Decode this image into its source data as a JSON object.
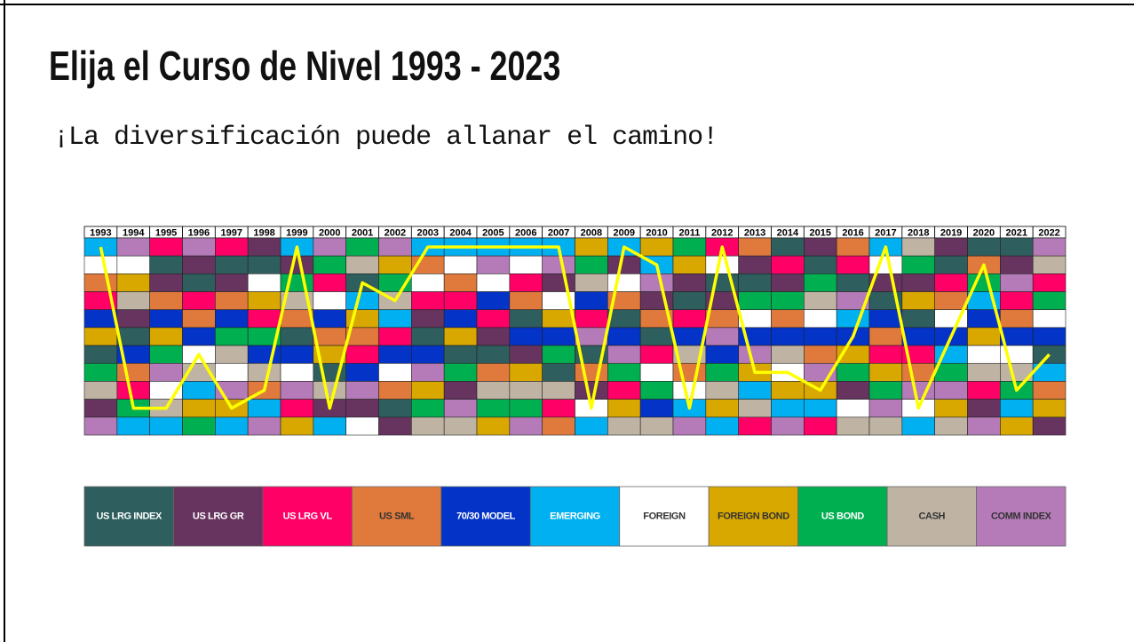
{
  "chart_data": {
    "type": "rank_grid",
    "title": "Elija el Curso de Nivel 1993 - 2023",
    "subtitle": "¡La diversificación puede allanar el camino!",
    "categories": [
      "1993",
      "1994",
      "1995",
      "1996",
      "1997",
      "1998",
      "1999",
      "2000",
      "2001",
      "2002",
      "2003",
      "2004",
      "2005",
      "2006",
      "2007",
      "2008",
      "2009",
      "2010",
      "2011",
      "2012",
      "2013",
      "2014",
      "2015",
      "2016",
      "2017",
      "2018",
      "2019",
      "2020",
      "2021",
      "2022"
    ],
    "classes": [
      {
        "name": "US LRG INDEX",
        "color": "#2e5e5e"
      },
      {
        "name": "US LRG GR",
        "color": "#66345f"
      },
      {
        "name": "US LRG VL",
        "color": "#ff0066"
      },
      {
        "name": "US SML",
        "color": "#e07a3c"
      },
      {
        "name": "70/30 MODEL",
        "color": "#0433c8"
      },
      {
        "name": "EMERGING",
        "color": "#00b0f0"
      },
      {
        "name": "FOREIGN",
        "color": "#ffffff"
      },
      {
        "name": "FOREIGN BOND",
        "color": "#d9a800"
      },
      {
        "name": "US BOND",
        "color": "#00b050"
      },
      {
        "name": "CASH",
        "color": "#bfb4a4"
      },
      {
        "name": "COMM INDEX",
        "color": "#b57bb8"
      }
    ],
    "grid": [
      [
        5,
        6,
        3,
        2,
        4,
        7,
        0,
        8,
        9,
        1,
        10
      ],
      [
        10,
        6,
        7,
        9,
        1,
        0,
        4,
        3,
        2,
        8,
        5
      ],
      [
        2,
        0,
        1,
        3,
        4,
        7,
        8,
        10,
        6,
        9,
        5
      ],
      [
        10,
        1,
        0,
        2,
        3,
        4,
        6,
        9,
        5,
        7,
        8
      ],
      [
        2,
        0,
        1,
        3,
        4,
        8,
        9,
        6,
        10,
        7,
        5
      ],
      [
        1,
        0,
        6,
        7,
        2,
        8,
        4,
        9,
        3,
        5,
        10
      ],
      [
        5,
        1,
        8,
        9,
        3,
        0,
        4,
        6,
        10,
        2,
        7
      ],
      [
        10,
        8,
        2,
        6,
        4,
        3,
        7,
        0,
        9,
        1,
        5
      ],
      [
        8,
        9,
        0,
        5,
        7,
        3,
        2,
        4,
        10,
        1,
        6
      ],
      [
        10,
        7,
        8,
        9,
        5,
        2,
        4,
        6,
        3,
        0,
        1
      ],
      [
        5,
        3,
        6,
        2,
        1,
        0,
        4,
        10,
        7,
        8,
        9
      ],
      [
        5,
        6,
        3,
        2,
        4,
        7,
        0,
        8,
        1,
        10,
        9
      ],
      [
        5,
        10,
        6,
        4,
        2,
        1,
        0,
        3,
        9,
        8,
        7
      ],
      [
        5,
        6,
        2,
        3,
        0,
        4,
        1,
        7,
        9,
        8,
        10
      ],
      [
        5,
        10,
        1,
        6,
        7,
        4,
        8,
        0,
        9,
        2,
        3
      ],
      [
        7,
        8,
        9,
        4,
        2,
        10,
        0,
        3,
        1,
        6,
        5
      ],
      [
        5,
        1,
        6,
        3,
        0,
        4,
        10,
        8,
        2,
        7,
        9
      ],
      [
        7,
        5,
        10,
        1,
        3,
        0,
        2,
        6,
        8,
        4,
        9
      ],
      [
        8,
        7,
        1,
        0,
        2,
        4,
        9,
        3,
        6,
        5,
        10
      ],
      [
        2,
        6,
        0,
        1,
        3,
        10,
        4,
        8,
        9,
        7,
        5
      ],
      [
        3,
        1,
        0,
        8,
        6,
        4,
        10,
        7,
        5,
        9,
        2
      ],
      [
        0,
        2,
        1,
        8,
        3,
        4,
        9,
        6,
        7,
        5,
        10
      ],
      [
        1,
        0,
        8,
        9,
        6,
        4,
        3,
        10,
        7,
        5,
        2
      ],
      [
        3,
        2,
        0,
        10,
        5,
        4,
        7,
        8,
        1,
        6,
        9
      ],
      [
        5,
        6,
        1,
        0,
        4,
        3,
        2,
        7,
        8,
        10,
        9
      ],
      [
        9,
        8,
        1,
        7,
        0,
        4,
        2,
        3,
        10,
        6,
        5
      ],
      [
        1,
        0,
        2,
        3,
        6,
        4,
        5,
        8,
        10,
        7,
        9
      ],
      [
        0,
        3,
        8,
        5,
        4,
        7,
        6,
        9,
        2,
        1,
        10
      ],
      [
        0,
        1,
        10,
        2,
        3,
        4,
        6,
        9,
        8,
        5,
        7
      ],
      [
        10,
        9,
        2,
        8,
        6,
        4,
        0,
        5,
        3,
        7,
        1
      ]
    ],
    "line": {
      "color": "#ffff00",
      "values": [
        1,
        10,
        10,
        7,
        10,
        9,
        1,
        10,
        3,
        4,
        1,
        1,
        1,
        1,
        1,
        10,
        1,
        2,
        10,
        1,
        8,
        8,
        9,
        6,
        1,
        10,
        6,
        2,
        9,
        7
      ]
    },
    "ylim": [
      0.5,
      11.5
    ]
  }
}
